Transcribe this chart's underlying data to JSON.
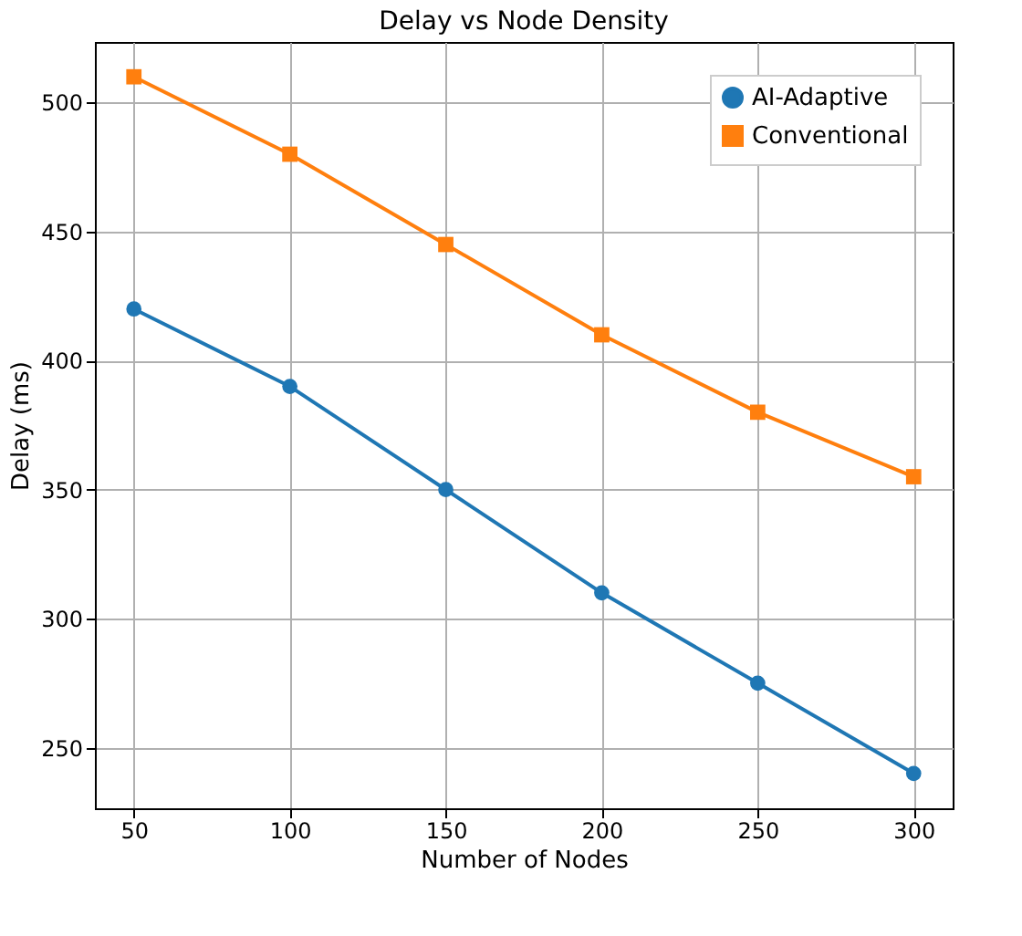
{
  "chart_data": {
    "type": "line",
    "title": "Delay vs Node Density",
    "xlabel": "Number of Nodes",
    "ylabel": "Delay (ms)",
    "x": [
      50,
      100,
      150,
      200,
      250,
      300
    ],
    "series": [
      {
        "name": "AI-Adaptive",
        "color": "#1f77b4",
        "marker": "circle",
        "values": [
          420,
          390,
          350,
          310,
          275,
          240
        ]
      },
      {
        "name": "Conventional",
        "color": "#ff7f0e",
        "marker": "square",
        "values": [
          510,
          480,
          445,
          410,
          380,
          355
        ]
      }
    ],
    "xlim": [
      37.5,
      312.5
    ],
    "xticks": [
      50,
      100,
      150,
      200,
      250,
      300
    ],
    "ylim": [
      226.5,
      523.5
    ],
    "yticks": [
      250,
      300,
      350,
      400,
      450,
      500
    ],
    "grid": true,
    "legend": "top right",
    "line_style": "solid"
  }
}
